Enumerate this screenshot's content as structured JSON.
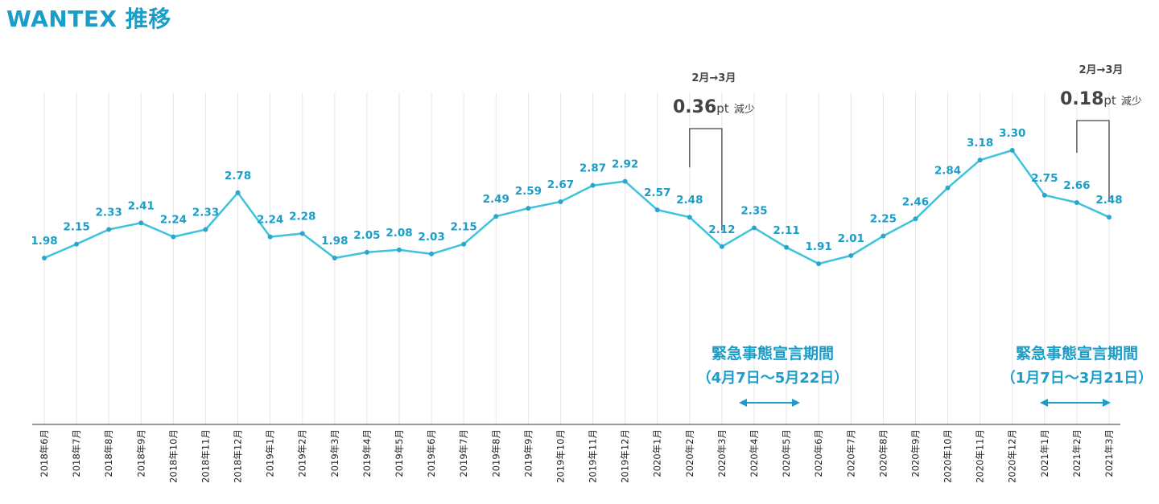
{
  "title": "WANTEX 推移",
  "chart_data": {
    "type": "line",
    "title": "WANTEX 推移",
    "categories": [
      "2018年6月",
      "2018年7月",
      "2018年8月",
      "2018年9月",
      "2018年10月",
      "2018年11月",
      "2018年12月",
      "2019年1月",
      "2019年2月",
      "2019年3月",
      "2019年4月",
      "2019年5月",
      "2019年6月",
      "2019年7月",
      "2019年8月",
      "2019年9月",
      "2019年10月",
      "2019年11月",
      "2019年12月",
      "2020年1月",
      "2020年2月",
      "2020年3月",
      "2020年4月",
      "2020年5月",
      "2020年6月",
      "2020年7月",
      "2020年8月",
      "2020年9月",
      "2020年10月",
      "2020年11月",
      "2020年12月",
      "2021年1月",
      "2021年2月",
      "2021年3月"
    ],
    "values": [
      1.98,
      2.15,
      2.33,
      2.41,
      2.24,
      2.33,
      2.78,
      2.24,
      2.28,
      1.98,
      2.05,
      2.08,
      2.03,
      2.15,
      2.49,
      2.59,
      2.67,
      2.87,
      2.92,
      2.57,
      2.48,
      2.12,
      2.35,
      2.11,
      1.91,
      2.01,
      2.25,
      2.46,
      2.84,
      3.18,
      3.3,
      2.75,
      2.66,
      2.48
    ],
    "data_labels": [
      "1.98",
      "2.15",
      "2.33",
      "2.41",
      "2.24",
      "2.33",
      "2.78",
      "2.24",
      "2.28",
      "1.98",
      "2.05",
      "2.08",
      "2.03",
      "2.15",
      "2.49",
      "2.59",
      "2.67",
      "2.87",
      "2.92",
      "2.57",
      "2.48",
      "2.12",
      "2.35",
      "2.11",
      "1.91",
      "2.01",
      "2.25",
      "2.46",
      "2.84",
      "3.18",
      "3.30",
      "2.75",
      "2.66",
      "2.48"
    ],
    "grid": "vertical",
    "line_color": "#3ec3dc",
    "label_color": "#1a9dc8",
    "annotations": [
      {
        "from": "2020年2月",
        "to": "2020年3月",
        "line1": "2月→3月",
        "value": "0.36",
        "unit": "pt",
        "suffix": "減少"
      },
      {
        "from": "2021年2月",
        "to": "2021年3月",
        "line1": "2月→3月",
        "value": "0.18",
        "unit": "pt",
        "suffix": "減少"
      }
    ],
    "periods": [
      {
        "title": "緊急事態宣言期間",
        "range": "（4月7日〜5月22日）",
        "from": "2020年4月",
        "to": "2020年5月"
      },
      {
        "title": "緊急事態宣言期間",
        "range": "（1月7日〜3月21日）",
        "from": "2021年1月",
        "to": "2021年3月"
      }
    ]
  }
}
